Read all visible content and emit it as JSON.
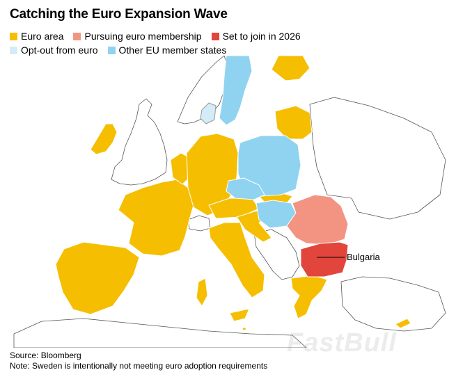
{
  "title": "Catching the Euro Expansion Wave",
  "legend": {
    "items": [
      {
        "label": "Euro area",
        "color": "#f5be00"
      },
      {
        "label": "Pursuing euro membership",
        "color": "#f39483"
      },
      {
        "label": "Set to join in 2026",
        "color": "#e2453b"
      },
      {
        "label": "Opt-out from euro",
        "color": "#d4ecf7"
      },
      {
        "label": "Other EU member states",
        "color": "#8fd3f0"
      }
    ]
  },
  "map": {
    "callout_label": "Bulgaria"
  },
  "footer": {
    "source": "Source: Bloomberg",
    "note": "Note: Sweden is intentionally not meeting euro adoption requirements"
  },
  "watermark": "FastBull"
}
